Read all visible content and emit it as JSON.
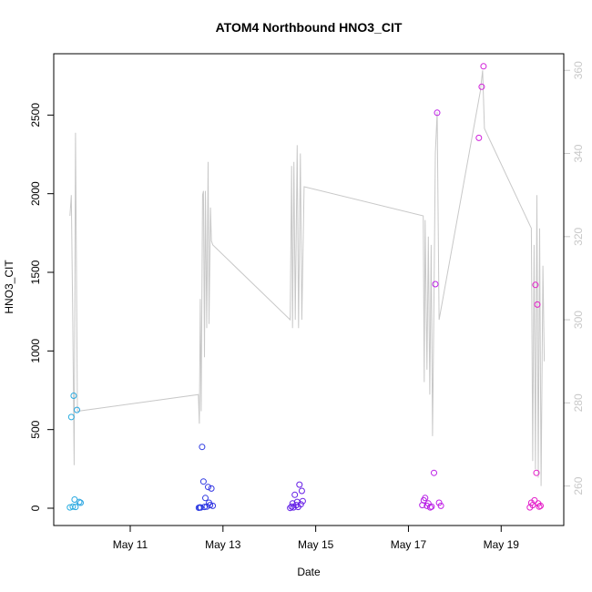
{
  "chart_data": {
    "type": "scatter",
    "title": "ATOM4 Northbound HNO3_CIT",
    "xlabel": "Date",
    "ylabel": "HNO3_CIT",
    "ylabel_right": "",
    "x_ticks": [
      {
        "x": 11,
        "label": "May 11"
      },
      {
        "x": 13,
        "label": "May 13"
      },
      {
        "x": 15,
        "label": "May 15"
      },
      {
        "x": 17,
        "label": "May 17"
      },
      {
        "x": 19,
        "label": "May 19"
      }
    ],
    "xlim": [
      9.35,
      20.35
    ],
    "ylim": [
      -110,
      2890
    ],
    "y_ticks": [
      0,
      500,
      1000,
      1500,
      2000,
      2500
    ],
    "y2lim": [
      250.5,
      364
    ],
    "y2_ticks": [
      260,
      280,
      300,
      320,
      340,
      360
    ],
    "grid": false,
    "legend": "none",
    "colors": {
      "line": "#c8c8c8",
      "right_axis": "#c8c8c8",
      "gradient": [
        "#29aee0",
        "#1d4fe0",
        "#4a1ee6",
        "#8a1ee6",
        "#c41ee6",
        "#e61ec8"
      ]
    },
    "scatter": [
      {
        "x": 9.7,
        "y": 5
      },
      {
        "x": 9.73,
        "y": 580
      },
      {
        "x": 9.76,
        "y": 10
      },
      {
        "x": 9.78,
        "y": 715
      },
      {
        "x": 9.8,
        "y": 55
      },
      {
        "x": 9.82,
        "y": 8
      },
      {
        "x": 9.85,
        "y": 625
      },
      {
        "x": 9.9,
        "y": 40
      },
      {
        "x": 9.93,
        "y": 35
      },
      {
        "x": 12.48,
        "y": 3
      },
      {
        "x": 12.5,
        "y": 5
      },
      {
        "x": 12.52,
        "y": 4
      },
      {
        "x": 12.55,
        "y": 390
      },
      {
        "x": 12.58,
        "y": 170
      },
      {
        "x": 12.6,
        "y": 8
      },
      {
        "x": 12.62,
        "y": 65
      },
      {
        "x": 12.65,
        "y": 10
      },
      {
        "x": 12.68,
        "y": 135
      },
      {
        "x": 12.7,
        "y": 35
      },
      {
        "x": 12.72,
        "y": 20
      },
      {
        "x": 12.75,
        "y": 125
      },
      {
        "x": 12.78,
        "y": 15
      },
      {
        "x": 14.45,
        "y": 2
      },
      {
        "x": 14.48,
        "y": 10
      },
      {
        "x": 14.5,
        "y": 30
      },
      {
        "x": 14.52,
        "y": 5
      },
      {
        "x": 14.55,
        "y": 85
      },
      {
        "x": 14.58,
        "y": 20
      },
      {
        "x": 14.6,
        "y": 40
      },
      {
        "x": 14.62,
        "y": 8
      },
      {
        "x": 14.65,
        "y": 150
      },
      {
        "x": 14.68,
        "y": 25
      },
      {
        "x": 14.7,
        "y": 110
      },
      {
        "x": 14.72,
        "y": 45
      },
      {
        "x": 17.3,
        "y": 20
      },
      {
        "x": 17.33,
        "y": 50
      },
      {
        "x": 17.36,
        "y": 65
      },
      {
        "x": 17.4,
        "y": 15
      },
      {
        "x": 17.43,
        "y": 30
      },
      {
        "x": 17.47,
        "y": 5
      },
      {
        "x": 17.5,
        "y": 10
      },
      {
        "x": 17.55,
        "y": 225
      },
      {
        "x": 17.58,
        "y": 1425
      },
      {
        "x": 17.62,
        "y": 2515
      },
      {
        "x": 17.66,
        "y": 35
      },
      {
        "x": 17.7,
        "y": 15
      },
      {
        "x": 18.52,
        "y": 2355
      },
      {
        "x": 18.58,
        "y": 2680
      },
      {
        "x": 18.62,
        "y": 2810
      },
      {
        "x": 19.62,
        "y": 5
      },
      {
        "x": 19.65,
        "y": 35
      },
      {
        "x": 19.68,
        "y": 20
      },
      {
        "x": 19.72,
        "y": 50
      },
      {
        "x": 19.74,
        "y": 1420
      },
      {
        "x": 19.76,
        "y": 225
      },
      {
        "x": 19.78,
        "y": 1295
      },
      {
        "x": 19.8,
        "y": 30
      },
      {
        "x": 19.82,
        "y": 10
      },
      {
        "x": 19.85,
        "y": 15
      }
    ],
    "line": [
      [
        9.7,
        325
      ],
      [
        9.73,
        330
      ],
      [
        9.76,
        300
      ],
      [
        9.79,
        265
      ],
      [
        9.82,
        345
      ],
      [
        9.86,
        278
      ],
      [
        12.47,
        282
      ],
      [
        12.49,
        275
      ],
      [
        12.51,
        305
      ],
      [
        12.53,
        278
      ],
      [
        12.56,
        330
      ],
      [
        12.58,
        331
      ],
      [
        12.6,
        291
      ],
      [
        12.62,
        331
      ],
      [
        12.65,
        298
      ],
      [
        12.68,
        338
      ],
      [
        12.7,
        299
      ],
      [
        12.73,
        327
      ],
      [
        12.75,
        319
      ],
      [
        12.78,
        318
      ],
      [
        14.45,
        300
      ],
      [
        14.48,
        337
      ],
      [
        14.5,
        298
      ],
      [
        14.53,
        338
      ],
      [
        14.56,
        300
      ],
      [
        14.6,
        342
      ],
      [
        14.63,
        298
      ],
      [
        14.67,
        340
      ],
      [
        14.7,
        300
      ],
      [
        14.75,
        332
      ],
      [
        17.32,
        325
      ],
      [
        17.34,
        285
      ],
      [
        17.36,
        324
      ],
      [
        17.4,
        288
      ],
      [
        17.43,
        320
      ],
      [
        17.46,
        282
      ],
      [
        17.49,
        318
      ],
      [
        17.52,
        272
      ],
      [
        17.55,
        305
      ],
      [
        17.58,
        340
      ],
      [
        17.62,
        350
      ],
      [
        17.66,
        300
      ],
      [
        18.55,
        355
      ],
      [
        18.6,
        360
      ],
      [
        18.64,
        346
      ],
      [
        19.65,
        322
      ],
      [
        19.68,
        266
      ],
      [
        19.71,
        318
      ],
      [
        19.74,
        264
      ],
      [
        19.77,
        330
      ],
      [
        19.8,
        262
      ],
      [
        19.83,
        322
      ],
      [
        19.86,
        260
      ],
      [
        19.9,
        313
      ],
      [
        19.93,
        290
      ]
    ]
  }
}
